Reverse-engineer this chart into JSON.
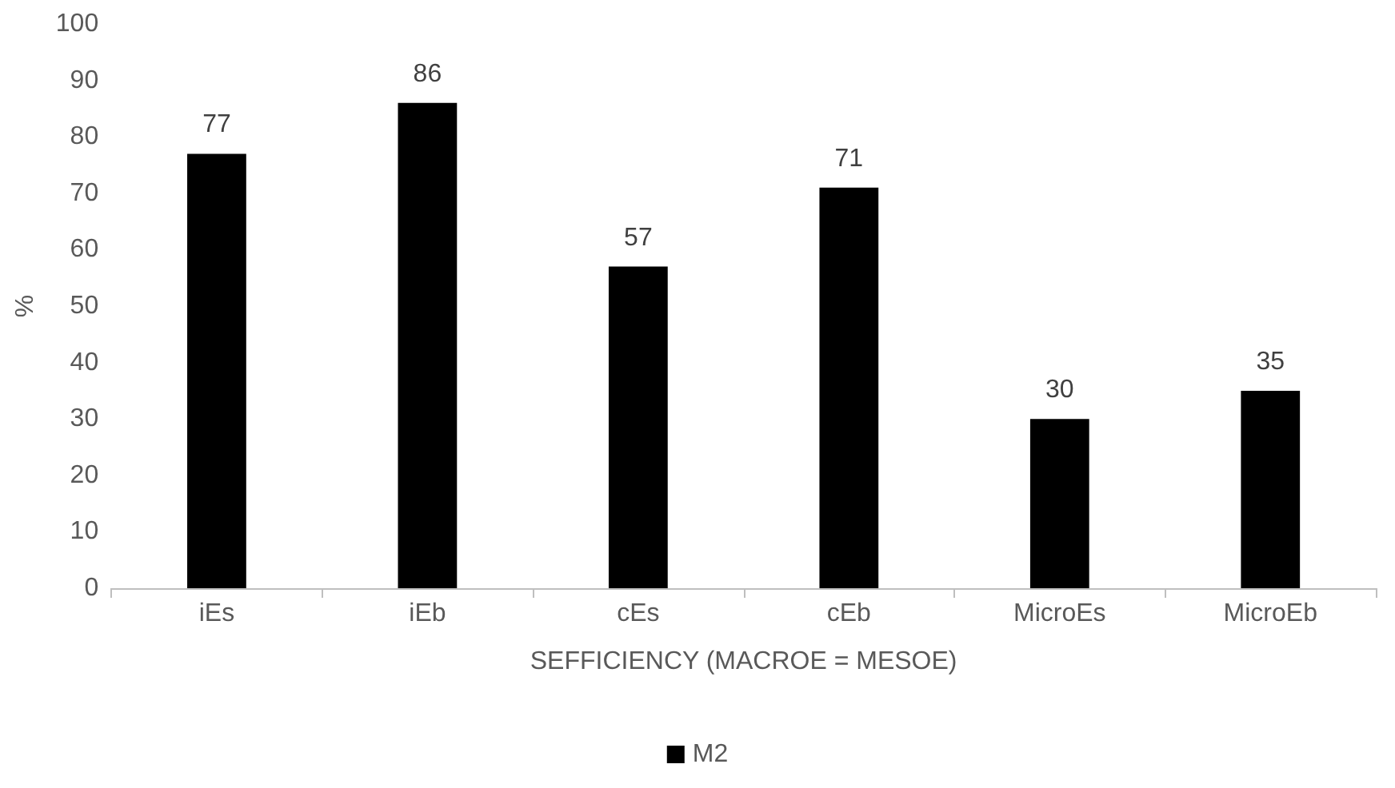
{
  "chart_data": {
    "type": "bar",
    "xlabel": "SEFFICIENCY (MACROE = MESOE)",
    "ylabel": "%",
    "categories": [
      "iEs",
      "iEb",
      "cEs",
      "cEb",
      "MicroEs",
      "MicroEb"
    ],
    "series": [
      {
        "name": "M2",
        "color": "#000000",
        "values": [
          77,
          86,
          57,
          71,
          30,
          35
        ]
      }
    ],
    "ylim": [
      0,
      100
    ],
    "yticks": [
      0,
      10,
      20,
      30,
      40,
      50,
      60,
      70,
      80,
      90,
      100
    ],
    "data_labels": true,
    "grid": false,
    "legend": "bottom"
  }
}
